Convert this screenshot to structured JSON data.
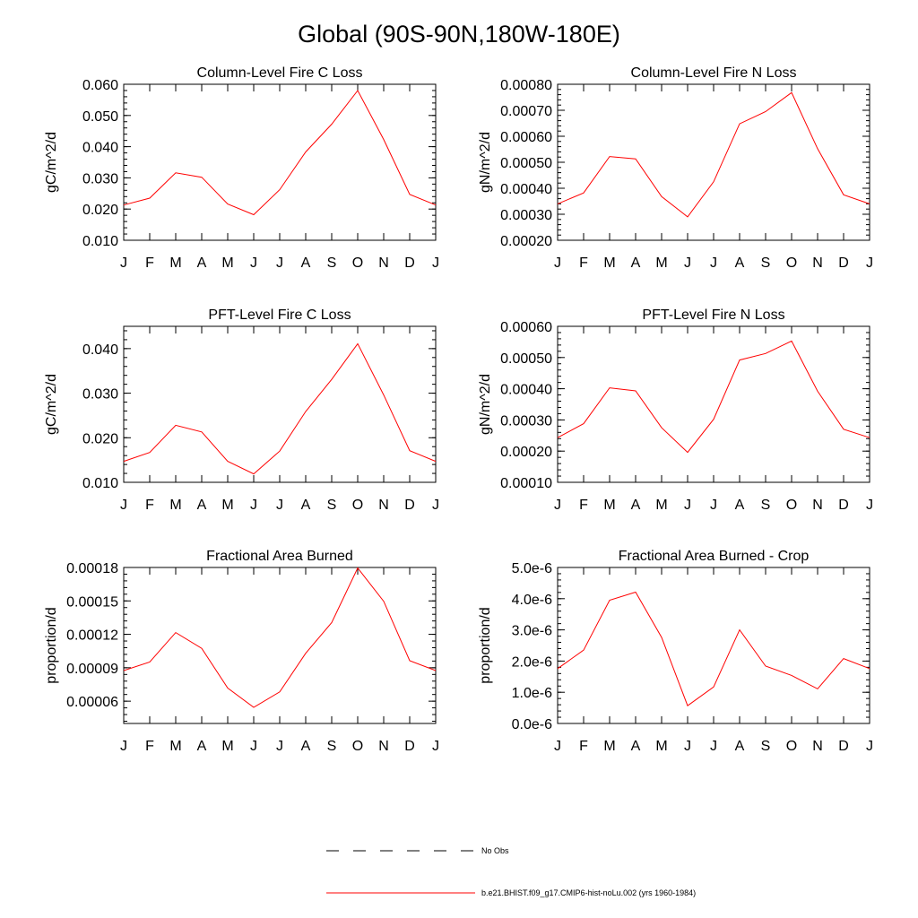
{
  "page": {
    "title": "Global (90S-90N,180W-180E)"
  },
  "legend": {
    "entries": [
      {
        "label": "No Obs",
        "color": "#000000",
        "dash": "dashed"
      },
      {
        "label": "b.e21.BHIST.f09_g17.CMIP6-hist-noLu.002 (yrs 1960-1984)",
        "color": "#ff0000",
        "dash": "solid"
      }
    ]
  },
  "chart_data": [
    {
      "type": "line",
      "title": "Column-Level Fire C Loss",
      "ylabel": "gC/m^2/d",
      "categories": [
        "J",
        "F",
        "M",
        "A",
        "M",
        "J",
        "J",
        "A",
        "S",
        "O",
        "N",
        "D",
        "J"
      ],
      "ylim": [
        0.01,
        0.06
      ],
      "yticks": [
        0.01,
        0.02,
        0.03,
        0.04,
        0.05,
        0.06
      ],
      "ytick_labels": [
        "0.010",
        "0.020",
        "0.030",
        "0.040",
        "0.050",
        "0.060"
      ],
      "series": [
        {
          "color": "#ff0000",
          "values": [
            0.0213,
            0.0235,
            0.0316,
            0.0302,
            0.0216,
            0.0182,
            0.0262,
            0.0383,
            0.0472,
            0.058,
            0.0423,
            0.0247,
            0.0213
          ]
        }
      ]
    },
    {
      "type": "line",
      "title": "Column-Level Fire N Loss",
      "ylabel": "gN/m^2/d",
      "categories": [
        "J",
        "F",
        "M",
        "A",
        "M",
        "J",
        "J",
        "A",
        "S",
        "O",
        "N",
        "D",
        "J"
      ],
      "ylim": [
        0.0002,
        0.0008
      ],
      "yticks": [
        0.0002,
        0.0003,
        0.0004,
        0.0005,
        0.0006,
        0.0007,
        0.0008
      ],
      "ytick_labels": [
        "0.00020",
        "0.00030",
        "0.00040",
        "0.00050",
        "0.00060",
        "0.00070",
        "0.00080"
      ],
      "series": [
        {
          "color": "#ff0000",
          "values": [
            0.00034,
            0.000382,
            0.000522,
            0.000513,
            0.000368,
            0.00029,
            0.000425,
            0.000648,
            0.000695,
            0.000768,
            0.000552,
            0.000375,
            0.00034
          ]
        }
      ]
    },
    {
      "type": "line",
      "title": "PFT-Level Fire C Loss",
      "ylabel": "gC/m^2/d",
      "categories": [
        "J",
        "F",
        "M",
        "A",
        "M",
        "J",
        "J",
        "A",
        "S",
        "O",
        "N",
        "D",
        "J"
      ],
      "ylim": [
        0.01,
        0.045
      ],
      "yticks": [
        0.01,
        0.02,
        0.03,
        0.04
      ],
      "ytick_labels": [
        "0.010",
        "0.020",
        "0.030",
        "0.040"
      ],
      "series": [
        {
          "color": "#ff0000",
          "values": [
            0.0147,
            0.0167,
            0.0228,
            0.0213,
            0.0147,
            0.0119,
            0.017,
            0.0259,
            0.0331,
            0.0411,
            0.0296,
            0.0171,
            0.0147
          ]
        }
      ]
    },
    {
      "type": "line",
      "title": "PFT-Level Fire N Loss",
      "ylabel": "gN/m^2/d",
      "categories": [
        "J",
        "F",
        "M",
        "A",
        "M",
        "J",
        "J",
        "A",
        "S",
        "O",
        "N",
        "D",
        "J"
      ],
      "ylim": [
        0.0001,
        0.0006
      ],
      "yticks": [
        0.0001,
        0.0002,
        0.0003,
        0.0004,
        0.0005,
        0.0006
      ],
      "ytick_labels": [
        "0.00010",
        "0.00020",
        "0.00030",
        "0.00040",
        "0.00050",
        "0.00060"
      ],
      "series": [
        {
          "color": "#ff0000",
          "values": [
            0.000243,
            0.000288,
            0.000403,
            0.000393,
            0.000275,
            0.000196,
            0.000302,
            0.000492,
            0.000513,
            0.000553,
            0.000392,
            0.00027,
            0.000243
          ]
        }
      ]
    },
    {
      "type": "line",
      "title": "Fractional Area Burned",
      "ylabel": "proportion/d",
      "categories": [
        "J",
        "F",
        "M",
        "A",
        "M",
        "J",
        "J",
        "A",
        "S",
        "O",
        "N",
        "D",
        "J"
      ],
      "ylim": [
        4e-05,
        0.00018
      ],
      "yticks": [
        6e-05,
        9e-05,
        0.00012,
        0.00015,
        0.00018
      ],
      "ytick_labels": [
        "0.00006",
        "0.00009",
        "0.00012",
        "0.00015",
        "0.00018"
      ],
      "series": [
        {
          "color": "#ff0000",
          "values": [
            8.75e-05,
            9.51e-05,
            0.0001216,
            0.0001074,
            7.18e-05,
            5.45e-05,
            6.83e-05,
            0.000103,
            0.0001305,
            0.0001795,
            0.0001497,
            9.63e-05,
            8.75e-05
          ]
        }
      ]
    },
    {
      "type": "line",
      "title": "Fractional Area Burned - Crop",
      "ylabel": "proportion/d",
      "categories": [
        "J",
        "F",
        "M",
        "A",
        "M",
        "J",
        "J",
        "A",
        "S",
        "O",
        "N",
        "D",
        "J"
      ],
      "ylim": [
        0.0,
        5e-06
      ],
      "yticks": [
        0.0,
        1e-06,
        2e-06,
        3e-06,
        4e-06,
        5e-06
      ],
      "ytick_labels": [
        "0.0e-6",
        "1.0e-6",
        "2.0e-6",
        "3.0e-6",
        "4.0e-6",
        "5.0e-6"
      ],
      "series": [
        {
          "color": "#ff0000",
          "values": [
            1.76e-06,
            2.35e-06,
            3.95e-06,
            4.21e-06,
            2.76e-06,
            5.7e-07,
            1.17e-06,
            3e-06,
            1.84e-06,
            1.54e-06,
            1.11e-06,
            2.08e-06,
            1.76e-06
          ]
        }
      ]
    }
  ]
}
